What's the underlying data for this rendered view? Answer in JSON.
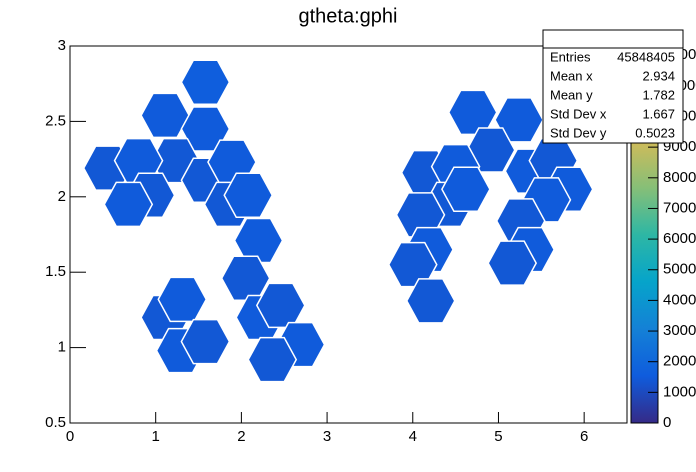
{
  "chart_data": {
    "type": "heatmap",
    "title": "gtheta:gphi",
    "xlim": [
      0,
      6.5
    ],
    "ylim": [
      0.5,
      3
    ],
    "xticks": [
      0,
      1,
      2,
      3,
      4,
      5,
      6
    ],
    "yticks": [
      0.5,
      1,
      1.5,
      2,
      2.5,
      3
    ],
    "zlim": [
      0,
      12300
    ],
    "zticks": [
      0,
      1000,
      2000,
      3000,
      4000,
      5000,
      6000,
      7000,
      8000,
      9000,
      10000,
      11000,
      12000
    ],
    "palette": [
      "#352a87",
      "#0f5cdd",
      "#1481d6",
      "#06a4ca",
      "#2eb7a4",
      "#87bf77",
      "#d1bb59",
      "#fec832",
      "#f9fb0e"
    ],
    "x": [
      1.58,
      1.11,
      1.58,
      1.23,
      0.44,
      0.8,
      0.94,
      0.68,
      1.58,
      1.89,
      1.85,
      2.08,
      2.2,
      2.05,
      1.11,
      1.31,
      1.29,
      1.58,
      2.22,
      2.46,
      2.69,
      2.36,
      4.7,
      5.24,
      4.91,
      4.15,
      4.5,
      4.42,
      4.62,
      4.09,
      4.19,
      4.0,
      4.21,
      5.36,
      5.64,
      5.82,
      5.56,
      5.26,
      5.37,
      5.16
    ],
    "y": [
      2.76,
      2.54,
      2.45,
      2.24,
      2.19,
      2.24,
      2.01,
      1.95,
      2.11,
      2.23,
      1.95,
      2.01,
      1.71,
      1.46,
      1.2,
      1.32,
      0.98,
      1.04,
      1.2,
      1.28,
      1.02,
      0.92,
      2.56,
      2.51,
      2.31,
      2.16,
      2.2,
      1.95,
      2.05,
      1.88,
      1.65,
      1.55,
      1.31,
      2.17,
      2.24,
      2.05,
      1.98,
      1.84,
      1.65,
      1.56
    ],
    "values": [
      1600,
      1500,
      1500,
      1400,
      1400,
      1500,
      1400,
      1500,
      1400,
      1500,
      1400,
      1500,
      1500,
      1400,
      1400,
      1500,
      1500,
      1400,
      1500,
      1400,
      1500,
      1400,
      1500,
      1500,
      1400,
      1400,
      1500,
      1400,
      1500,
      1400,
      1500,
      1400,
      1400,
      1500,
      1400,
      1500,
      1500,
      1400,
      1500,
      1400
    ],
    "stats": [
      {
        "label": "Entries",
        "value": 45848405
      },
      {
        "label": "Mean x",
        "value": 2.934
      },
      {
        "label": "Mean y",
        "value": 1.782
      },
      {
        "label": "Std Dev x",
        "value": 1.667
      },
      {
        "label": "Std Dev y",
        "value": 0.5023
      }
    ]
  }
}
